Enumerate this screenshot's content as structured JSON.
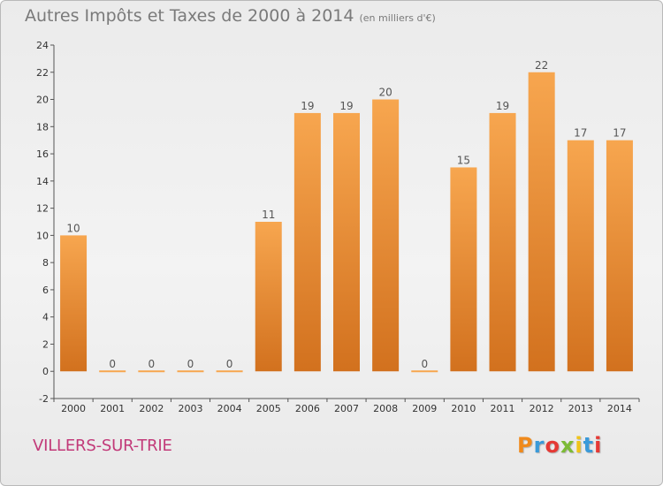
{
  "header": {
    "title": "Autres Impôts et Taxes de 2000 à 2014",
    "unit": "(en milliers d'€)"
  },
  "footer": {
    "commune": "VILLERS-SUR-TRIE",
    "logo_letters": [
      "P",
      "r",
      "o",
      "x",
      "i",
      "t",
      "i"
    ],
    "logo_colors": [
      "#f08a1c",
      "#3a9ad9",
      "#e53935",
      "#7cbb35",
      "#f0c419",
      "#3a9ad9",
      "#e53935"
    ]
  },
  "colors": {
    "bar_light": "#f7a64f",
    "bar_dark": "#d2711e",
    "axis": "#555555",
    "grid": "#c8c8c8"
  },
  "chart_data": {
    "type": "bar",
    "title": "Autres Impôts et Taxes de 2000 à 2014",
    "subtitle": "(en milliers d'€)",
    "categories": [
      "2000",
      "2001",
      "2002",
      "2003",
      "2004",
      "2005",
      "2006",
      "2007",
      "2008",
      "2009",
      "2010",
      "2011",
      "2012",
      "2013",
      "2014"
    ],
    "values": [
      10,
      0,
      0,
      0,
      0,
      11,
      19,
      19,
      20,
      0,
      15,
      19,
      22,
      17,
      17
    ],
    "data_labels": [
      "10",
      "0",
      "0",
      "0",
      "0",
      "11",
      "19",
      "19",
      "20",
      "0",
      "15",
      "19",
      "22",
      "17",
      "17"
    ],
    "ylim": [
      -2,
      24
    ],
    "yticks": [
      -2,
      0,
      2,
      4,
      6,
      8,
      10,
      12,
      14,
      16,
      18,
      20,
      22,
      24
    ],
    "xlabel": "",
    "ylabel": "",
    "grid": false,
    "legend": "none"
  }
}
